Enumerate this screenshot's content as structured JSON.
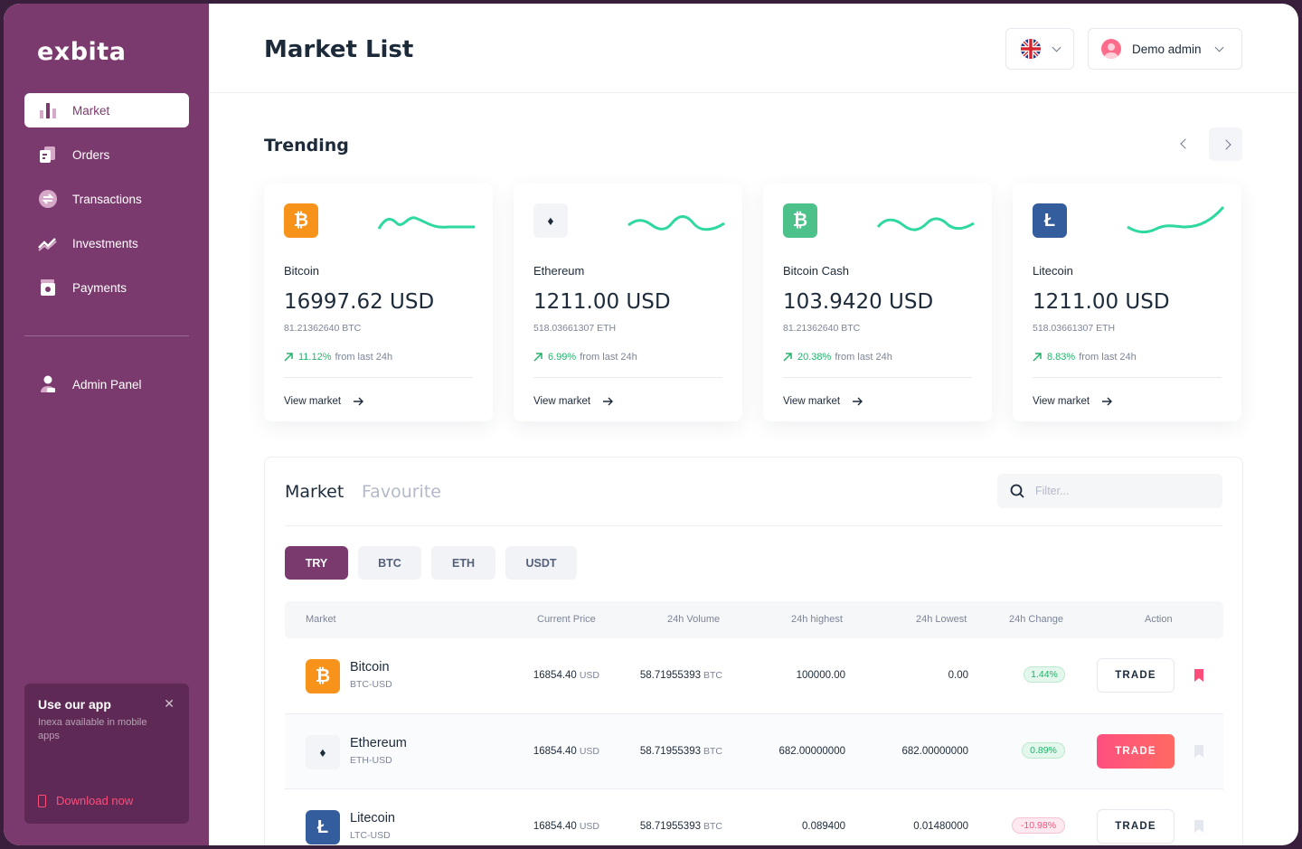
{
  "app": {
    "logo": "exbita"
  },
  "sidebar": {
    "items": [
      {
        "label": "Market",
        "icon": "bar-chart-icon",
        "active": true
      },
      {
        "label": "Orders",
        "icon": "orders-icon"
      },
      {
        "label": "Transactions",
        "icon": "exchange-icon"
      },
      {
        "label": "Investments",
        "icon": "trend-icon"
      },
      {
        "label": "Payments",
        "icon": "wallet-icon"
      }
    ],
    "admin": {
      "label": "Admin Panel",
      "icon": "user-icon"
    },
    "promo": {
      "title": "Use our app",
      "subtitle": "Inexa available in mobile apps",
      "cta": "Download now"
    }
  },
  "header": {
    "title": "Market List",
    "user_name": "Demo admin",
    "language": "uk-flag-icon"
  },
  "trending": {
    "title": "Trending",
    "view_label": "View market",
    "from_label": "from last 24h",
    "cards": [
      {
        "name": "Bitcoin",
        "price": "16997.62 USD",
        "sub": "81.21362640 BTC",
        "change": "11.12%",
        "color": "#f7931a",
        "glyph": "₿"
      },
      {
        "name": "Ethereum",
        "price": "1211.00 USD",
        "sub": "518.03661307 ETH",
        "change": "6.99%",
        "color": "#f3f4f7",
        "glyph": "♦"
      },
      {
        "name": "Bitcoin Cash",
        "price": "103.9420 USD",
        "sub": "81.21362640 BTC",
        "change": "20.38%",
        "color": "#4cc18a",
        "glyph": "₿"
      },
      {
        "name": "Litecoin",
        "price": "1211.00 USD",
        "sub": "518.03661307 ETH",
        "change": "8.83%",
        "color": "#345d9d",
        "glyph": "Ł"
      }
    ]
  },
  "market": {
    "tabs": [
      "Market",
      "Favourite"
    ],
    "filter_placeholder": "Filter...",
    "pills": [
      "TRY",
      "BTC",
      "ETH",
      "USDT"
    ],
    "active_pill": "TRY",
    "columns": [
      "Market",
      "Current Price",
      "24h Volume",
      "24h highest",
      "24h Lowest",
      "24h Change",
      "Action"
    ],
    "trade_label": "TRADE",
    "rows": [
      {
        "name": "Bitcoin",
        "pair": "BTC-USD",
        "price": "16854.40",
        "price_unit": "USD",
        "volume": "58.71955393",
        "volume_unit": "BTC",
        "high": "100000.00",
        "low": "0.00",
        "change": "1.44%",
        "up": true,
        "color": "#f7931a",
        "glyph": "₿",
        "favourite": true
      },
      {
        "name": "Ethereum",
        "pair": "ETH-USD",
        "price": "16854.40",
        "price_unit": "USD",
        "volume": "58.71955393",
        "volume_unit": "BTC",
        "high": "682.00000000",
        "low": "682.00000000",
        "change": "0.89%",
        "up": true,
        "color": "#f3f4f7",
        "glyph": "♦",
        "favourite": false
      },
      {
        "name": "Litecoin",
        "pair": "LTC-USD",
        "price": "16854.40",
        "price_unit": "USD",
        "volume": "58.71955393",
        "volume_unit": "BTC",
        "high": "0.089400",
        "low": "0.01480000",
        "change": "-10.98%",
        "up": false,
        "color": "#345d9d",
        "glyph": "Ł",
        "favourite": false
      }
    ]
  }
}
